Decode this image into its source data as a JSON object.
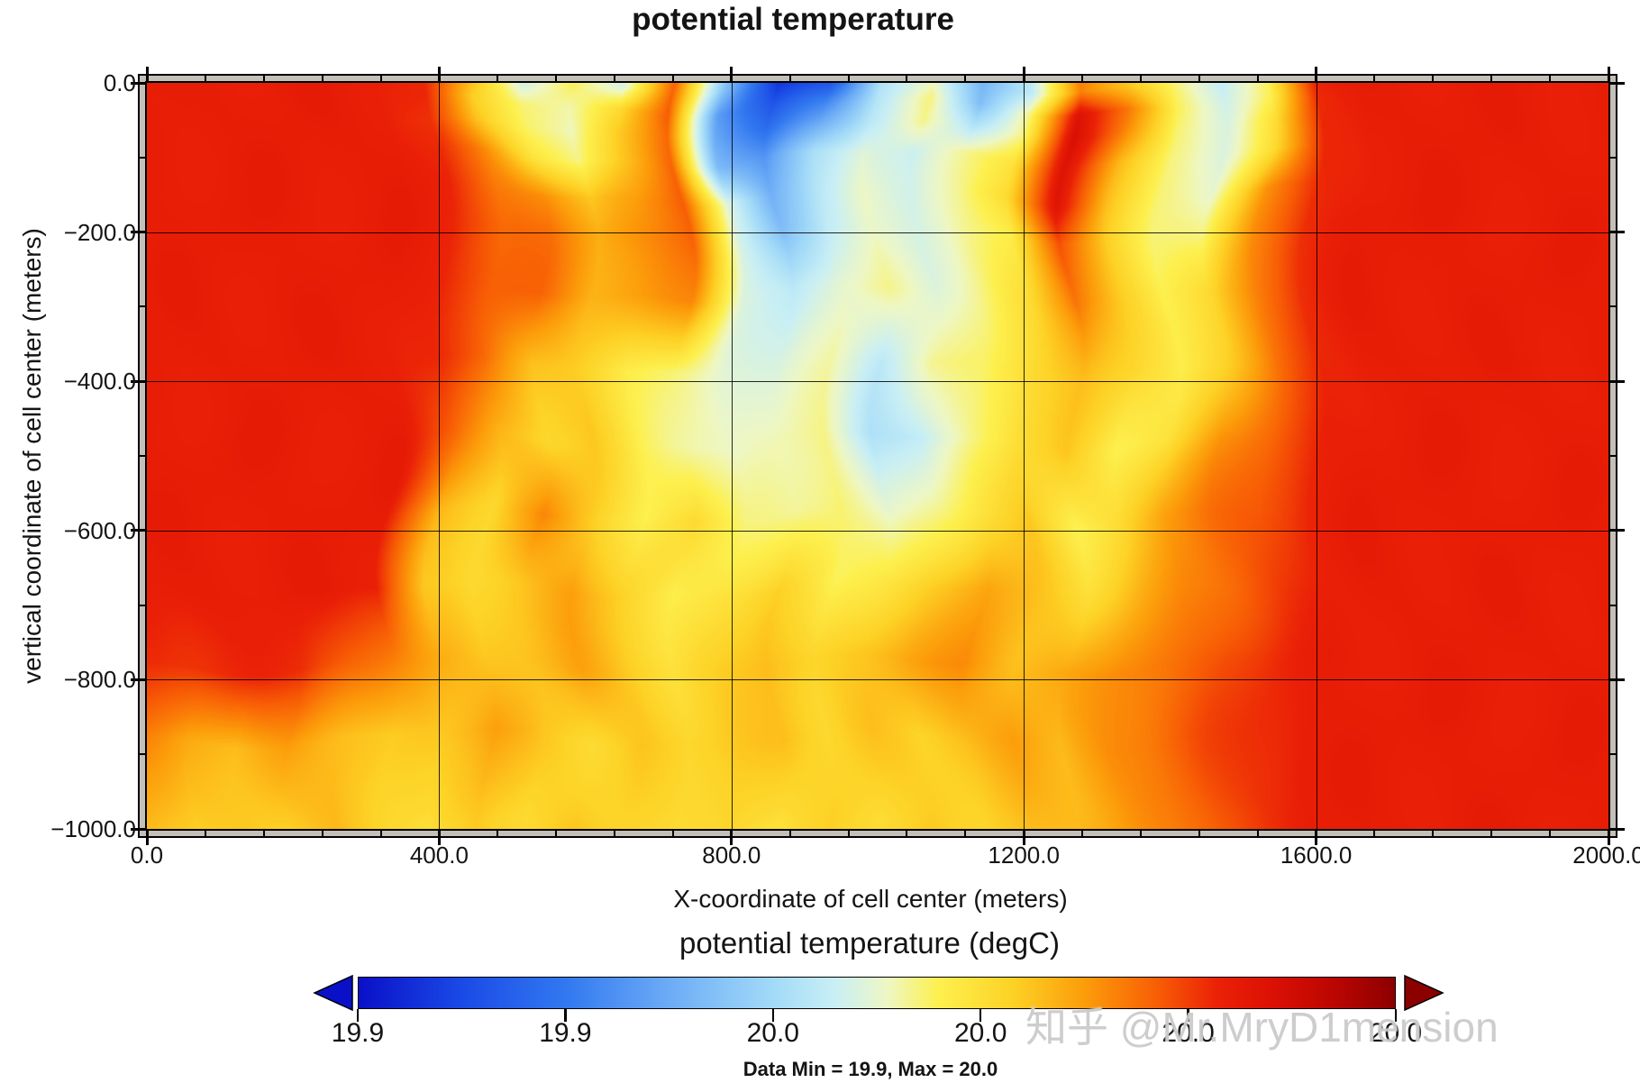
{
  "chart_data": {
    "type": "heatmap",
    "title": "potential temperature",
    "xlabel": "X-coordinate of cell center (meters)",
    "ylabel": "vertical coordinate of cell center (meters)",
    "xlim": [
      0,
      2000
    ],
    "ylim": [
      -1000,
      0
    ],
    "grid": "on",
    "xticks": {
      "major_labels": [
        "0.0",
        "400.0",
        "800.0",
        "1200.0",
        "1600.0",
        "2000.0"
      ],
      "major_values": [
        0,
        400,
        800,
        1200,
        1600,
        2000
      ],
      "minor_step": 80
    },
    "yticks": {
      "major_labels": [
        "0.0",
        "−200.0",
        "−400.0",
        "−600.0",
        "−800.0",
        "−1000.0"
      ],
      "major_values": [
        0,
        -200,
        -400,
        -600,
        -800,
        -1000
      ],
      "minor_step": 100
    },
    "colorbar": {
      "title": "potential temperature (degC)",
      "tick_labels": [
        "19.9",
        "19.9",
        "20.0",
        "20.0",
        "20.0",
        "20.0"
      ],
      "min": 19.9,
      "max": 20.0,
      "stops": [
        [
          0.0,
          "#0a10c8"
        ],
        [
          0.1,
          "#1a4ae6"
        ],
        [
          0.2,
          "#3278f0"
        ],
        [
          0.3,
          "#6cacf6"
        ],
        [
          0.4,
          "#a2daf8"
        ],
        [
          0.46,
          "#c9eff5"
        ],
        [
          0.51,
          "#eef7c4"
        ],
        [
          0.56,
          "#fdf04e"
        ],
        [
          0.63,
          "#fdd226"
        ],
        [
          0.7,
          "#fc9d0a"
        ],
        [
          0.77,
          "#f85e05"
        ],
        [
          0.83,
          "#ea2007"
        ],
        [
          0.88,
          "#dc1104"
        ],
        [
          0.94,
          "#bc0602"
        ],
        [
          1.0,
          "#8c0000"
        ]
      ]
    },
    "caption": "Data Min = 19.9, Max = 20.0",
    "field": {
      "x": [
        0,
        67,
        133,
        200,
        267,
        333,
        400,
        467,
        533,
        600,
        667,
        733,
        800,
        867,
        933,
        1000,
        1067,
        1133,
        1200,
        1267,
        1333,
        1400,
        1467,
        1533,
        1600,
        1667,
        1733,
        1800,
        1867,
        1933,
        2000
      ],
      "z": [
        0,
        -30,
        -60,
        -100,
        -150,
        -200,
        -280,
        -380,
        -480,
        -580,
        -680,
        -780,
        -880,
        -1000
      ],
      "t_degc": [
        [
          19.984,
          19.984,
          19.984,
          19.984,
          19.984,
          19.984,
          19.982,
          19.966,
          19.947,
          19.956,
          19.948,
          19.976,
          19.935,
          19.905,
          19.91,
          19.943,
          19.95,
          19.932,
          19.944,
          19.974,
          19.965,
          19.954,
          19.946,
          19.955,
          19.983,
          19.984,
          19.984,
          19.984,
          19.984,
          19.984,
          19.984
        ],
        [
          19.984,
          19.984,
          19.984,
          19.984,
          19.984,
          19.984,
          19.982,
          19.963,
          19.955,
          19.952,
          19.961,
          19.977,
          19.928,
          19.912,
          19.921,
          19.944,
          19.954,
          19.934,
          19.953,
          19.988,
          19.974,
          19.955,
          19.948,
          19.956,
          19.982,
          19.984,
          19.984,
          19.984,
          19.984,
          19.984,
          19.984
        ],
        [
          19.984,
          19.984,
          19.984,
          19.984,
          19.984,
          19.984,
          19.981,
          19.965,
          19.956,
          19.951,
          19.964,
          19.976,
          19.93,
          19.917,
          19.929,
          19.945,
          19.953,
          19.942,
          19.954,
          19.989,
          19.972,
          19.954,
          19.949,
          19.96,
          19.982,
          19.984,
          19.984,
          19.984,
          19.984,
          19.984,
          19.984
        ],
        [
          19.984,
          19.984,
          19.984,
          19.984,
          19.984,
          19.984,
          19.982,
          19.972,
          19.96,
          19.953,
          19.965,
          19.977,
          19.933,
          19.926,
          19.941,
          19.95,
          19.946,
          19.953,
          19.96,
          19.987,
          19.967,
          19.954,
          19.949,
          19.961,
          19.982,
          19.984,
          19.984,
          19.984,
          19.984,
          19.984,
          19.984
        ],
        [
          19.984,
          19.984,
          19.984,
          19.984,
          19.984,
          19.984,
          19.983,
          19.974,
          19.972,
          19.964,
          19.97,
          19.978,
          19.948,
          19.931,
          19.943,
          19.951,
          19.947,
          19.953,
          19.962,
          19.986,
          19.966,
          19.955,
          19.95,
          19.971,
          19.982,
          19.984,
          19.984,
          19.984,
          19.984,
          19.984,
          19.984
        ],
        [
          19.984,
          19.984,
          19.984,
          19.984,
          19.984,
          19.984,
          19.983,
          19.976,
          19.975,
          19.968,
          19.972,
          19.977,
          19.947,
          19.934,
          19.945,
          19.95,
          19.948,
          19.953,
          19.957,
          19.978,
          19.964,
          19.955,
          19.953,
          19.972,
          19.982,
          19.984,
          19.984,
          19.984,
          19.984,
          19.984,
          19.984
        ],
        [
          19.984,
          19.984,
          19.984,
          19.984,
          19.984,
          19.984,
          19.983,
          19.977,
          19.976,
          19.968,
          19.97,
          19.972,
          19.949,
          19.944,
          19.95,
          19.953,
          19.949,
          19.954,
          19.96,
          19.975,
          19.964,
          19.956,
          19.961,
          19.973,
          19.982,
          19.984,
          19.984,
          19.984,
          19.984,
          19.984,
          19.984
        ],
        [
          19.984,
          19.984,
          19.984,
          19.984,
          19.984,
          19.984,
          19.982,
          19.976,
          19.966,
          19.963,
          19.957,
          19.954,
          19.95,
          19.948,
          19.952,
          19.945,
          19.953,
          19.955,
          19.961,
          19.966,
          19.962,
          19.956,
          19.964,
          19.974,
          19.982,
          19.984,
          19.984,
          19.984,
          19.984,
          19.984,
          19.984
        ],
        [
          19.984,
          19.984,
          19.984,
          19.984,
          19.984,
          19.984,
          19.977,
          19.967,
          19.962,
          19.964,
          19.956,
          19.953,
          19.95,
          19.952,
          19.954,
          19.942,
          19.945,
          19.953,
          19.961,
          19.964,
          19.956,
          19.96,
          19.971,
          19.976,
          19.983,
          19.984,
          19.984,
          19.984,
          19.984,
          19.984,
          19.984
        ],
        [
          19.984,
          19.984,
          19.984,
          19.984,
          19.984,
          19.984,
          19.967,
          19.962,
          19.972,
          19.964,
          19.956,
          19.961,
          19.954,
          19.953,
          19.955,
          19.949,
          19.954,
          19.959,
          19.964,
          19.956,
          19.961,
          19.97,
          19.975,
          19.978,
          19.983,
          19.984,
          19.984,
          19.984,
          19.984,
          19.984,
          19.984
        ],
        [
          19.984,
          19.984,
          19.984,
          19.984,
          19.984,
          19.984,
          19.964,
          19.961,
          19.965,
          19.97,
          19.963,
          19.956,
          19.96,
          19.963,
          19.955,
          19.959,
          19.964,
          19.969,
          19.965,
          19.961,
          19.967,
          19.972,
          19.976,
          19.98,
          19.983,
          19.984,
          19.984,
          19.984,
          19.984,
          19.984,
          19.984
        ],
        [
          19.982,
          19.982,
          19.982,
          19.982,
          19.977,
          19.973,
          19.968,
          19.964,
          19.966,
          19.969,
          19.964,
          19.96,
          19.963,
          19.966,
          19.962,
          19.965,
          19.969,
          19.972,
          19.966,
          19.968,
          19.972,
          19.975,
          19.979,
          19.982,
          19.984,
          19.984,
          19.984,
          19.984,
          19.984,
          19.984,
          19.984
        ],
        [
          19.974,
          19.968,
          19.966,
          19.97,
          19.966,
          19.963,
          19.965,
          19.97,
          19.964,
          19.961,
          19.965,
          19.962,
          19.964,
          19.966,
          19.962,
          19.965,
          19.963,
          19.966,
          19.97,
          19.966,
          19.972,
          19.975,
          19.979,
          19.982,
          19.984,
          19.984,
          19.984,
          19.984,
          19.984,
          19.984,
          19.984
        ],
        [
          19.966,
          19.963,
          19.965,
          19.962,
          19.966,
          19.963,
          19.96,
          19.964,
          19.961,
          19.965,
          19.962,
          19.96,
          19.963,
          19.959,
          19.963,
          19.961,
          19.964,
          19.962,
          19.965,
          19.967,
          19.97,
          19.973,
          19.978,
          19.981,
          19.984,
          19.984,
          19.984,
          19.984,
          19.984,
          19.984,
          19.984
        ]
      ]
    }
  },
  "watermark": {
    "text": "知乎 @Mr.MryD1mension",
    "color": "#c9c9c9"
  }
}
